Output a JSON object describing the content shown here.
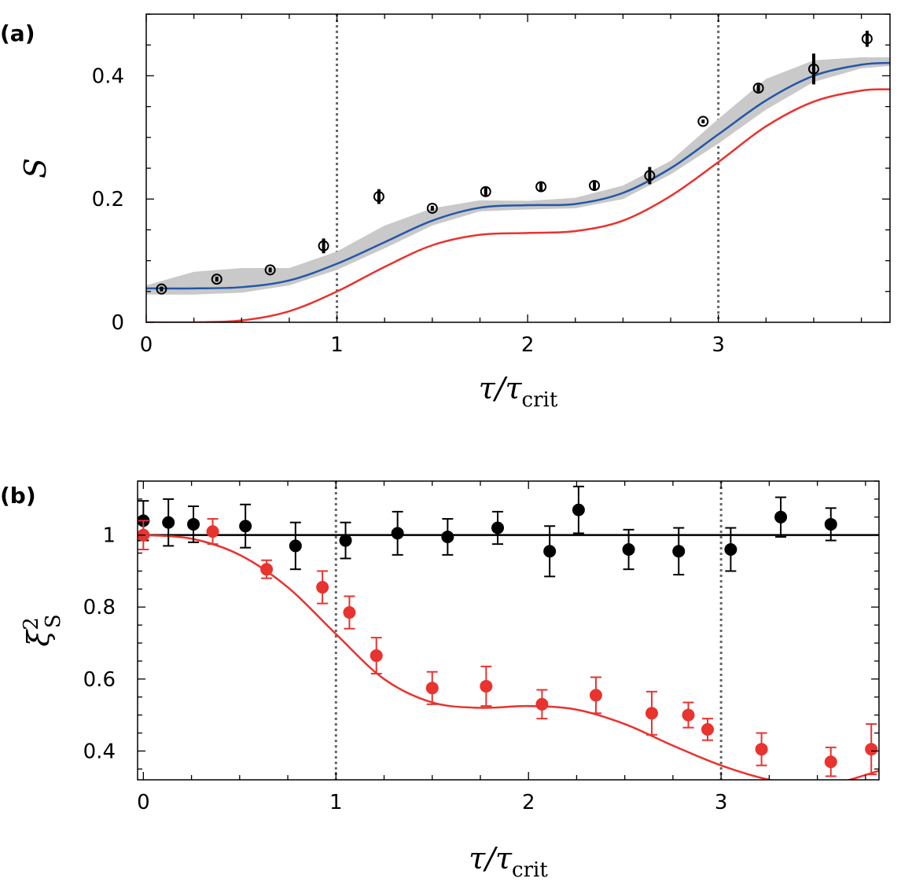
{
  "chart_data": [
    {
      "panel": "(a)",
      "type": "scatter",
      "xlabel": {
        "main": "τ/τ",
        "sub": "crit"
      },
      "ylabel": "S",
      "xlim": [
        0,
        3.9
      ],
      "ylim": [
        0,
        0.5
      ],
      "xticks": [
        0,
        1,
        2,
        3
      ],
      "yticks": [
        0,
        0.2,
        0.4
      ],
      "ytick_labels": [
        "0",
        "0.2",
        "0.4"
      ],
      "vlines": [
        1,
        3
      ],
      "colors": {
        "blue_curve": "#2457a8",
        "red_curve": "#e8332e",
        "band": "#c9c9c9",
        "points": "#000000"
      },
      "series": [
        {
          "style": "open-circle-errorbar",
          "x": [
            0.08,
            0.37,
            0.65,
            0.93,
            1.22,
            1.5,
            1.78,
            2.07,
            2.35,
            2.64,
            2.92,
            3.21,
            3.5,
            3.78
          ],
          "y": [
            0.054,
            0.07,
            0.085,
            0.124,
            0.204,
            0.185,
            0.212,
            0.22,
            0.222,
            0.238,
            0.326,
            0.38,
            0.411,
            0.46
          ],
          "err": [
            0.004,
            0.004,
            0.004,
            0.012,
            0.012,
            0.004,
            0.008,
            0.008,
            0.008,
            0.014,
            0.003,
            0.006,
            0.025,
            0.013
          ]
        },
        {
          "style": "line-blue",
          "x": [
            0,
            0.25,
            0.5,
            0.75,
            1.0,
            1.25,
            1.5,
            1.75,
            2.0,
            2.25,
            2.5,
            2.75,
            3.0,
            3.25,
            3.5,
            3.75,
            3.9
          ],
          "y": [
            0.055,
            0.055,
            0.057,
            0.068,
            0.095,
            0.13,
            0.165,
            0.186,
            0.19,
            0.192,
            0.21,
            0.25,
            0.305,
            0.36,
            0.4,
            0.418,
            0.421
          ]
        },
        {
          "style": "line-red",
          "x": [
            0,
            0.25,
            0.5,
            0.75,
            1.0,
            1.25,
            1.5,
            1.75,
            2.0,
            2.25,
            2.5,
            2.75,
            3.0,
            3.25,
            3.5,
            3.75,
            3.9
          ],
          "y": [
            0,
            0.0,
            0.003,
            0.018,
            0.05,
            0.09,
            0.125,
            0.142,
            0.145,
            0.148,
            0.165,
            0.205,
            0.26,
            0.318,
            0.358,
            0.376,
            0.378
          ]
        },
        {
          "style": "band",
          "x": [
            0,
            0.25,
            0.5,
            0.75,
            1.0,
            1.25,
            1.5,
            1.75,
            2.0,
            2.25,
            2.5,
            2.75,
            3.0,
            3.25,
            3.5,
            3.75,
            3.9
          ],
          "lower": [
            0.045,
            0.045,
            0.048,
            0.06,
            0.085,
            0.12,
            0.157,
            0.18,
            0.183,
            0.185,
            0.2,
            0.24,
            0.29,
            0.345,
            0.39,
            0.412,
            0.416
          ],
          "upper": [
            0.06,
            0.082,
            0.088,
            0.088,
            0.115,
            0.157,
            0.185,
            0.198,
            0.197,
            0.202,
            0.222,
            0.262,
            0.33,
            0.395,
            0.425,
            0.43,
            0.43
          ]
        }
      ]
    },
    {
      "panel": "(b)",
      "type": "scatter",
      "xlabel": {
        "main": "τ/τ",
        "sub": "crit"
      },
      "ylabel": {
        "main": "ξ",
        "sup": "2",
        "sub": "S"
      },
      "xlim": [
        -0.03,
        3.82
      ],
      "ylim": [
        0.32,
        1.15
      ],
      "xticks": [
        0,
        1,
        2,
        3
      ],
      "yticks": [
        0.4,
        0.6,
        0.8,
        1
      ],
      "ytick_labels": [
        "0.4",
        "0.6",
        "0.8",
        "1"
      ],
      "vlines": [
        1,
        3
      ],
      "hline": 1,
      "colors": {
        "black": "#000000",
        "red": "#e8332e"
      },
      "series": [
        {
          "style": "filled-black-errorbar",
          "x": [
            0.0,
            0.13,
            0.26,
            0.53,
            0.79,
            1.05,
            1.32,
            1.58,
            1.84,
            2.11,
            2.26,
            2.52,
            2.78,
            3.05,
            3.31,
            3.57
          ],
          "y": [
            1.04,
            1.035,
            1.03,
            1.025,
            0.97,
            0.985,
            1.005,
            0.995,
            1.02,
            0.955,
            1.07,
            0.96,
            0.955,
            0.96,
            1.05,
            1.03
          ],
          "err": [
            0.055,
            0.065,
            0.05,
            0.06,
            0.065,
            0.05,
            0.06,
            0.05,
            0.045,
            0.07,
            0.065,
            0.055,
            0.065,
            0.06,
            0.055,
            0.045
          ]
        },
        {
          "style": "filled-red-errorbar",
          "x": [
            0.0,
            0.36,
            0.64,
            0.93,
            1.07,
            1.21,
            1.5,
            1.78,
            2.07,
            2.35,
            2.64,
            2.83,
            2.93,
            3.21,
            3.57,
            3.78
          ],
          "y": [
            1.0,
            1.01,
            0.905,
            0.855,
            0.785,
            0.665,
            0.575,
            0.58,
            0.53,
            0.555,
            0.505,
            0.5,
            0.46,
            0.405,
            0.37,
            0.405
          ],
          "err": [
            0.04,
            0.035,
            0.025,
            0.045,
            0.045,
            0.05,
            0.045,
            0.055,
            0.04,
            0.05,
            0.06,
            0.035,
            0.03,
            0.045,
            0.04,
            0.07
          ]
        },
        {
          "style": "line-red",
          "x": [
            -0.03,
            0.0,
            0.25,
            0.5,
            0.75,
            1.0,
            1.25,
            1.5,
            1.75,
            2.0,
            2.25,
            2.5,
            2.75,
            3.0,
            3.25,
            3.5,
            3.82
          ],
          "y": [
            1.0,
            1.0,
            0.99,
            0.945,
            0.855,
            0.725,
            0.6,
            0.535,
            0.52,
            0.525,
            0.515,
            0.475,
            0.415,
            0.36,
            0.32,
            0.3,
            0.345
          ]
        }
      ]
    }
  ]
}
